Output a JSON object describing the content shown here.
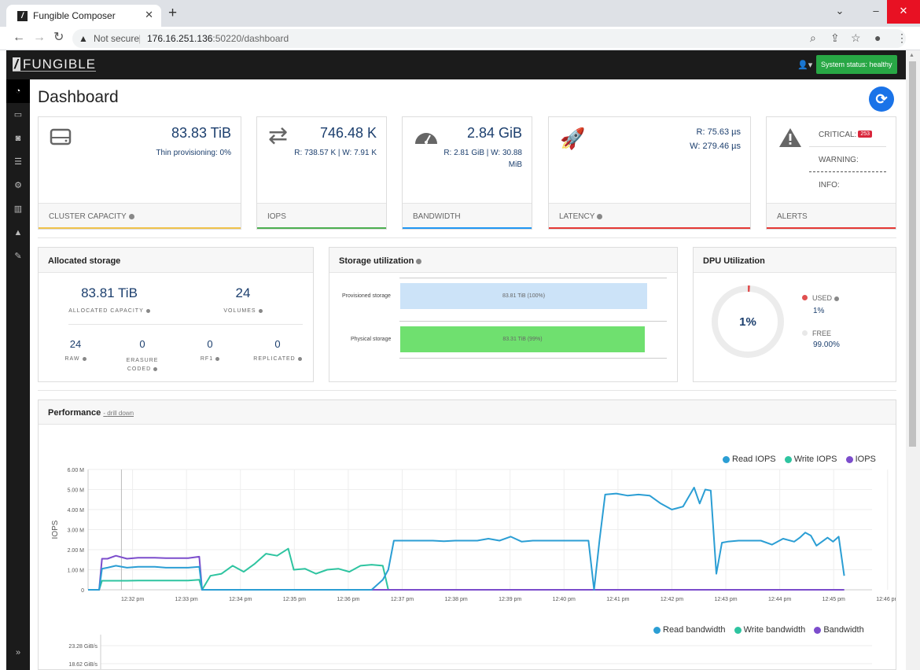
{
  "browser": {
    "tab_title": "Fungible Composer",
    "security_label": "Not secure",
    "url_host": "176.16.251.136",
    "url_port_path": ":50220/dashboard"
  },
  "header": {
    "logo_text": "FUNGIBLE",
    "system_status": "System status: healthy"
  },
  "page": {
    "title": "Dashboard"
  },
  "cards": {
    "capacity": {
      "value": "83.83 TiB",
      "sub": "Thin provisioning: 0%",
      "label": "CLUSTER CAPACITY",
      "accent": "#f0c24b"
    },
    "iops": {
      "value": "746.48 K",
      "sub": "R: 738.57 K | W: 7.91 K",
      "label": "IOPS",
      "accent": "#4caf50"
    },
    "bandwidth": {
      "value": "2.84 GiB",
      "sub1": "R: 2.81 GiB | W: 30.88",
      "sub2": "MiB",
      "label": "BANDWIDTH",
      "accent": "#2196f3"
    },
    "latency": {
      "read": "R: 75.63 µs",
      "write": "W: 279.46 µs",
      "label": "LATENCY",
      "accent": "#e53935"
    },
    "alerts": {
      "critical_label": "CRITICAL:",
      "critical_count": "253",
      "warning_label": "WARNING:",
      "info_label": "INFO:",
      "label": "ALERTS",
      "accent": "#e53935"
    }
  },
  "allocated": {
    "title": "Allocated storage",
    "capacity_value": "83.81 TiB",
    "capacity_label": "ALLOCATED CAPACITY",
    "volumes_value": "24",
    "volumes_label": "VOLUMES",
    "raw_value": "24",
    "raw_label": "RAW",
    "erasure_value": "0",
    "erasure_label1": "ERASURE",
    "erasure_label2": "CODED",
    "rf1_value": "0",
    "rf1_label": "RF1",
    "replicated_value": "0",
    "replicated_label": "REPLICATED"
  },
  "storage_util": {
    "title": "Storage utilization",
    "provisioned_label": "Provisioned storage",
    "provisioned_value": "83.81 TiB (100%)",
    "provisioned_fraction": 1.0,
    "physical_label": "Physical storage",
    "physical_value": "83.31 TiB (99%)",
    "physical_fraction": 0.99
  },
  "dpu": {
    "title": "DPU Utilization",
    "center": "1%",
    "used_label": "USED",
    "used_value": "1%",
    "free_label": "FREE",
    "free_value": "99.00%",
    "used_fraction": 0.01,
    "used_color": "#e05050",
    "free_color": "#e8e8e8"
  },
  "performance": {
    "title": "Performance",
    "drill_down": "drill down",
    "bandwidth_legend": [
      "Read bandwidth",
      "Write bandwidth",
      "Bandwidth"
    ],
    "bw_ticks": [
      "23.28 GiB/s",
      "18.62 GiB/s"
    ]
  },
  "chart_data": {
    "type": "line",
    "ylabel": "IOPS",
    "y_ticks": [
      "6.00 M",
      "5.00 M",
      "4.00 M",
      "3.00 M",
      "2.00 M",
      "1.00 M",
      "0"
    ],
    "ylim": [
      0,
      6000000
    ],
    "x_ticks": [
      "12:32 pm",
      "12:33 pm",
      "12:34 pm",
      "12:35 pm",
      "12:36 pm",
      "12:37 pm",
      "12:38 pm",
      "12:39 pm",
      "12:40 pm",
      "12:41 pm",
      "12:42 pm",
      "12:43 pm",
      "12:44 pm",
      "12:45 pm",
      "12:46 pm"
    ],
    "x": [
      0,
      0.2,
      0.25,
      0.35,
      0.5,
      0.7,
      0.9,
      1.0,
      1.2,
      1.4,
      1.6,
      1.8,
      2.0,
      2.05,
      2.2,
      2.4,
      2.6,
      2.8,
      3.0,
      3.2,
      3.4,
      3.6,
      3.7,
      3.9,
      4.1,
      4.3,
      4.5,
      4.7,
      4.9,
      5.1,
      5.3,
      5.4,
      5.5,
      5.6,
      5.8,
      6.0,
      6.2,
      6.4,
      6.6,
      6.8,
      7.0,
      7.2,
      7.4,
      7.6,
      7.8,
      8.0,
      8.2,
      8.4,
      8.6,
      8.8,
      9.0,
      9.1,
      9.2,
      9.3,
      9.5,
      9.7,
      9.9,
      10.1,
      10.3,
      10.5,
      10.7,
      10.9,
      11.0,
      11.1,
      11.2,
      11.3,
      11.4,
      11.5,
      11.7,
      11.9,
      12.1,
      12.3,
      12.5,
      12.7,
      12.8,
      12.9,
      13.0,
      13.1,
      13.3,
      13.4,
      13.5,
      13.6
    ],
    "series": [
      {
        "name": "Read IOPS",
        "color": "#2b9ed4",
        "values": [
          0,
          0,
          1050000,
          1100000,
          1200000,
          1100000,
          1150000,
          1150000,
          1150000,
          1100000,
          1100000,
          1100000,
          1150000,
          0,
          0,
          0,
          0,
          0,
          0,
          0,
          0,
          0,
          0,
          0,
          0,
          0,
          0,
          0,
          0,
          0,
          500000,
          1000000,
          2450000,
          2450000,
          2450000,
          2450000,
          2450000,
          2420000,
          2450000,
          2450000,
          2450000,
          2550000,
          2450000,
          2650000,
          2400000,
          2450000,
          2450000,
          2450000,
          2450000,
          2450000,
          2450000,
          0,
          2500000,
          4750000,
          4800000,
          4700000,
          4750000,
          4700000,
          4300000,
          4000000,
          4150000,
          5100000,
          4300000,
          5000000,
          4950000,
          800000,
          2350000,
          2400000,
          2450000,
          2450000,
          2450000,
          2250000,
          2550000,
          2400000,
          2600000,
          2850000,
          2700000,
          2200000,
          2600000,
          2400000,
          2650000,
          700000
        ]
      },
      {
        "name": "Write IOPS",
        "color": "#2ec4a0",
        "values": [
          0,
          0,
          450000,
          450000,
          450000,
          450000,
          460000,
          460000,
          460000,
          460000,
          460000,
          460000,
          500000,
          0,
          700000,
          800000,
          1200000,
          900000,
          1300000,
          1800000,
          1700000,
          2050000,
          1000000,
          1050000,
          800000,
          1000000,
          1050000,
          900000,
          1200000,
          1250000,
          1200000,
          0,
          0,
          0,
          0,
          0,
          0,
          0,
          0,
          0,
          0,
          0,
          0,
          0,
          0,
          0,
          0,
          0,
          0,
          0,
          0,
          0,
          0,
          0,
          0,
          0,
          0,
          0,
          0,
          0,
          0,
          0,
          0,
          0,
          0,
          0,
          0,
          0,
          0,
          0,
          0,
          0,
          0,
          0,
          0,
          0,
          0,
          0,
          0,
          0,
          0,
          0
        ]
      },
      {
        "name": "IOPS",
        "color": "#7c4dcc",
        "values": [
          0,
          0,
          1550000,
          1550000,
          1700000,
          1550000,
          1600000,
          1600000,
          1600000,
          1580000,
          1580000,
          1580000,
          1650000,
          0,
          0,
          0,
          0,
          0,
          0,
          0,
          0,
          0,
          0,
          0,
          0,
          0,
          0,
          0,
          0,
          0,
          0,
          0,
          0,
          0,
          0,
          0,
          0,
          0,
          0,
          0,
          0,
          0,
          0,
          0,
          0,
          0,
          0,
          0,
          0,
          0,
          0,
          0,
          0,
          0,
          0,
          0,
          0,
          0,
          0,
          0,
          0,
          0,
          0,
          0,
          0,
          0,
          0,
          0,
          0,
          0,
          0,
          0,
          0,
          0,
          0,
          0,
          0,
          0,
          0,
          0,
          0,
          0
        ]
      }
    ],
    "legend_position": "top-right",
    "grid": true
  }
}
